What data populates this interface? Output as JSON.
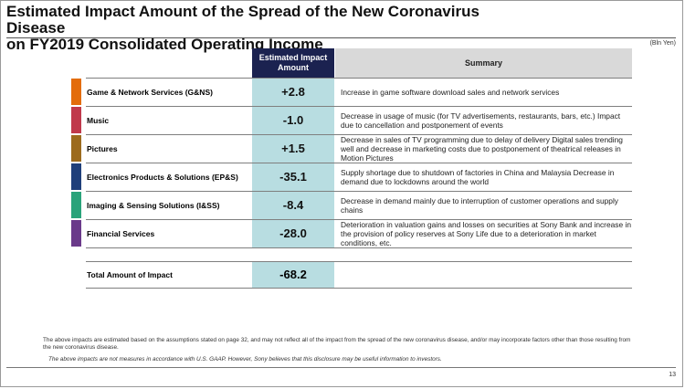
{
  "title": {
    "line1": "Estimated Impact Amount of the Spread of the New Coronavirus Disease",
    "line2": "on FY2019 Consolidated Operating Income"
  },
  "unit": "(Bln Yen)",
  "headers": {
    "amount": "Estimated Impact Amount",
    "summary": "Summary"
  },
  "rows": [
    {
      "name": "Game & Network Services (G&NS)",
      "amount": "+2.8",
      "summary": "Increase in game software download sales and network services",
      "color": "#e36c0a"
    },
    {
      "name": "Music",
      "amount": "-1.0",
      "summary": "Decrease in usage of music (for TV advertisements, restaurants, bars, etc.) Impact due to cancellation and postponement of events",
      "color": "#c0394b"
    },
    {
      "name": "Pictures",
      "amount": "+1.5",
      "summary": "Decrease in sales of TV programming due to delay of delivery Digital sales trending well and decrease in marketing costs due to postponement of theatrical releases in Motion Pictures",
      "color": "#9c6b1e"
    },
    {
      "name": "Electronics Products & Solutions (EP&S)",
      "amount": "-35.1",
      "summary": "Supply shortage due to shutdown of factories in China and Malaysia Decrease in demand due to lockdowns around the world",
      "color": "#1f3f7a"
    },
    {
      "name": "Imaging & Sensing Solutions (I&SS)",
      "amount": "-8.4",
      "summary": "Decrease in demand mainly due to interruption of customer operations and supply chains",
      "color": "#2aa37a"
    },
    {
      "name": "Financial Services",
      "amount": "-28.0",
      "summary": "Deterioration in valuation gains and losses on securities at Sony Bank and increase in the provision of policy reserves at Sony Life due to a deterioration in market conditions, etc.",
      "color": "#6a3a8a"
    }
  ],
  "total": {
    "label": "Total Amount of Impact",
    "amount": "-68.2"
  },
  "footnotes": {
    "note1": "The above impacts are estimated based on the assumptions stated on page 32, and may not reflect all of the impact from the spread of the new coronavirus disease, and/or may incorporate factors other than those resulting from the new coronavirus disease.",
    "note2": "The above impacts are not measures in accordance with U.S. GAAP. However, Sony believes that this disclosure may be useful information to investors."
  },
  "page_number": "13"
}
